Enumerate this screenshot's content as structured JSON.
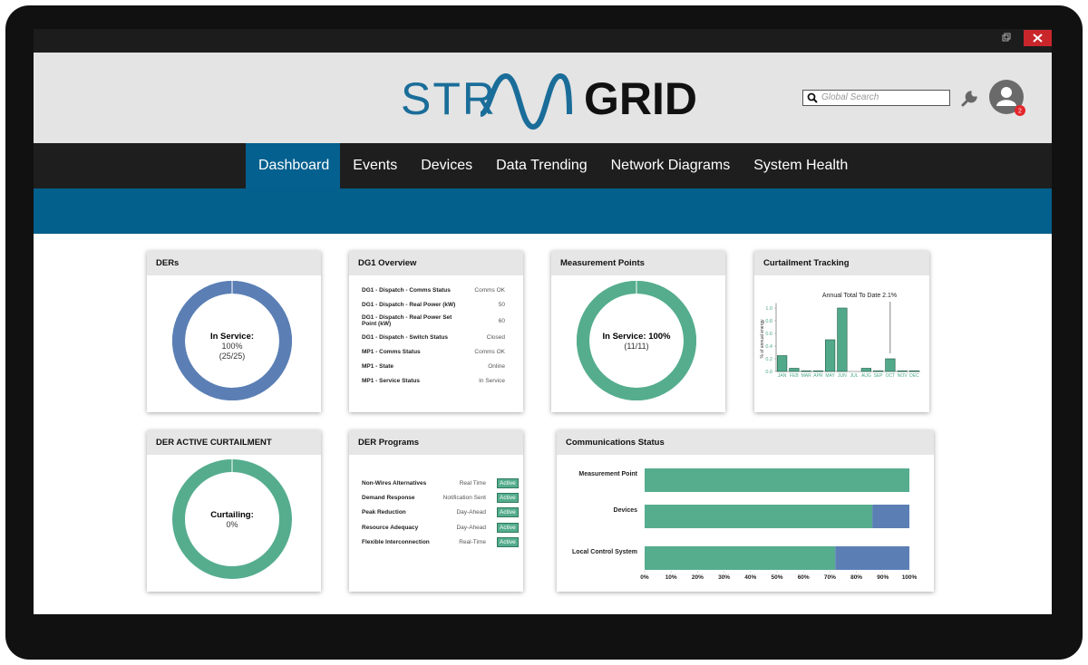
{
  "header": {
    "logo": {
      "left": "STR",
      "right": "GRID"
    },
    "search_placeholder": "Global Search",
    "notifications": 2
  },
  "nav": {
    "items": [
      "Dashboard",
      "Events",
      "Devices",
      "Data Trending",
      "Network Diagrams",
      "System Health"
    ],
    "active_index": 0
  },
  "cards": {
    "ders": {
      "title": "DERs",
      "status_label": "In Service:",
      "value": 100,
      "value_label": "100%",
      "detail": "(25/25)",
      "color": "#5b7fb5",
      "track_color": "#5b7fb5"
    },
    "dg1_overview": {
      "title": "DG1 Overview",
      "rows": [
        [
          "DG1 - Dispatch - Comms Status",
          "Comms OK"
        ],
        [
          "DG1 - Dispatch - Real Power (kW)",
          50
        ],
        [
          "DG1 - Dispatch - Real Power Set Point (kW)",
          60
        ],
        [
          "DG1 - Dispatch - Switch Status",
          "Closed"
        ],
        [
          "MP1 - Comms Status",
          "Comms OK"
        ],
        [
          "MP1 - State",
          "Online"
        ],
        [
          "MP1 - Service Status",
          "In Service"
        ]
      ]
    },
    "measurement_points": {
      "title": "Measurement Points",
      "status_label": "In Service:",
      "value": 100,
      "value_label": "100%",
      "detail": "(11/11)",
      "color": "#55ad8e",
      "track_color": "#55ad8e"
    },
    "curtailment_tracking": {
      "title": "Curtailment Tracking",
      "chart": {
        "type": "bar",
        "annotation": "Annual Total To Date 2.1%",
        "y_label": "% of annual energy",
        "categories": [
          "JAN",
          "FEB",
          "MAR",
          "APR",
          "MAY",
          "JUN",
          "JUL",
          "AUG",
          "SEP",
          "OCT",
          "NOV",
          "DEC"
        ],
        "values": [
          0.25,
          0.05,
          0.01,
          0.01,
          0.5,
          1.0,
          0.0,
          0.05,
          0.01,
          0.2,
          0.01,
          0.01
        ],
        "color": "#52a98a",
        "ylim": [
          0,
          1.05
        ],
        "yticks": [
          {
            "value": 0,
            "label": "0.0"
          },
          {
            "value": 0.2,
            "label": "0.2"
          },
          {
            "value": 0.4,
            "label": "0.4"
          },
          {
            "value": 0.6,
            "label": "0.6"
          },
          {
            "value": 0.8,
            "label": "0.8"
          },
          {
            "value": 1,
            "label": "1.0"
          }
        ]
      }
    },
    "der_active_curtailment": {
      "title": "DER ACTIVE CURTAILMENT",
      "status_label": "Curtailing:",
      "value": 0,
      "value_label": "0%",
      "color": "#5b7fb5",
      "track_color": "#55ad8e"
    },
    "der_programs": {
      "title": "DER Programs",
      "rows": [
        [
          "Non-Wires Alternatives",
          "Real Time",
          "Active"
        ],
        [
          "Demand Response",
          "Notification Sent",
          "Active"
        ],
        [
          "Peak Reduction",
          "Day-Ahead",
          "Active"
        ],
        [
          "Resource Adequacy",
          "Day-Ahead",
          "Active"
        ],
        [
          "Flexible Interconnection",
          "Real-Time",
          "Active"
        ]
      ]
    },
    "communications_status": {
      "title": "Communications Status",
      "chart": {
        "type": "stacked-bar-horizontal",
        "categories": [
          "Measurement Point",
          "Devices",
          "Local Control System"
        ],
        "series": [
          {
            "color": "#55ad8e",
            "values": [
              100,
              86,
              72
            ]
          },
          {
            "color": "#5b7fb5",
            "values": [
              0,
              14,
              28
            ]
          }
        ],
        "xlim": [
          0,
          100
        ],
        "xticks": [
          {
            "value": 0,
            "label": "0%"
          },
          {
            "value": 10,
            "label": "10%"
          },
          {
            "value": 20,
            "label": "20%"
          },
          {
            "value": 30,
            "label": "30%"
          },
          {
            "value": 40,
            "label": "40%"
          },
          {
            "value": 50,
            "label": "50%"
          },
          {
            "value": 60,
            "label": "60%"
          },
          {
            "value": 70,
            "label": "70%"
          },
          {
            "value": 80,
            "label": "80%"
          },
          {
            "value": 90,
            "label": "90%"
          },
          {
            "value": 100,
            "label": "100%"
          }
        ]
      }
    }
  }
}
